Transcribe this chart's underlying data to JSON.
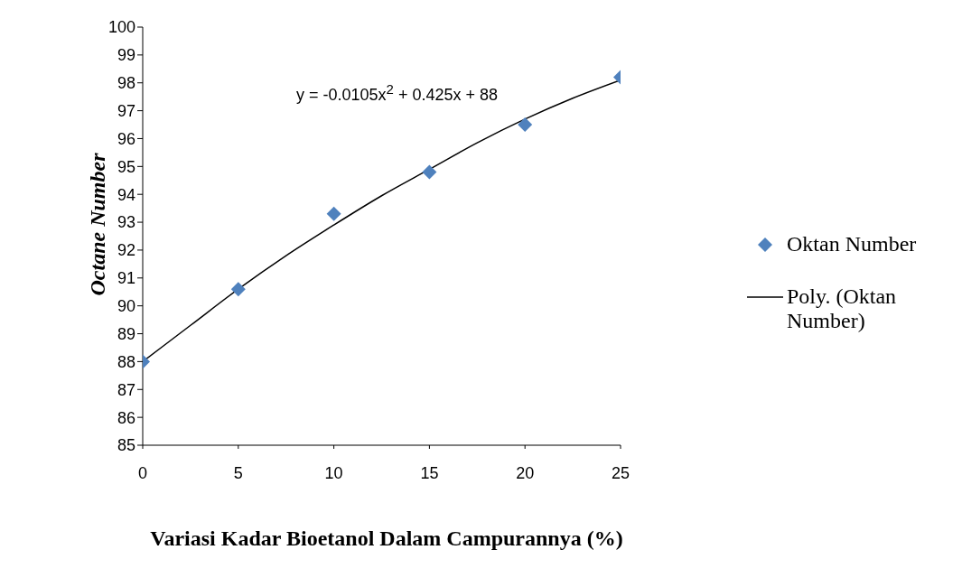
{
  "chart_data": {
    "type": "scatter",
    "xlabel": "Variasi Kadar Bioetanol Dalam Campurannya (%)",
    "ylabel": "Octane Number",
    "annotations": [
      "y = -0.0105x$^{2}$ + 0.425x + 88"
    ],
    "x": [
      0,
      5,
      10,
      15,
      20,
      25
    ],
    "series": [
      {
        "name": "Oktan Number",
        "color": "#4f81bd",
        "marker": "diamond",
        "values": [
          88,
          90.6,
          93.3,
          94.8,
          96.5,
          98.2
        ]
      },
      {
        "name": "Poly. (Oktan Number)",
        "type": "line",
        "color": "#000000",
        "marker": "none",
        "x": [
          0,
          2.5,
          5,
          7.5,
          10,
          12.5,
          15,
          17.5,
          20,
          22.5,
          25
        ],
        "values": [
          88,
          89.3,
          90.6,
          91.8,
          92.9,
          93.95,
          94.9,
          95.85,
          96.7,
          97.45,
          98.1
        ]
      }
    ],
    "xlim": [
      0,
      25
    ],
    "xticks": [
      0,
      5,
      10,
      15,
      20,
      25
    ],
    "ylim": [
      85,
      100
    ],
    "yticks": [
      85,
      86,
      87,
      88,
      89,
      90,
      91,
      92,
      93,
      94,
      95,
      96,
      97,
      98,
      99,
      100
    ],
    "grid": false,
    "legend": "right"
  }
}
